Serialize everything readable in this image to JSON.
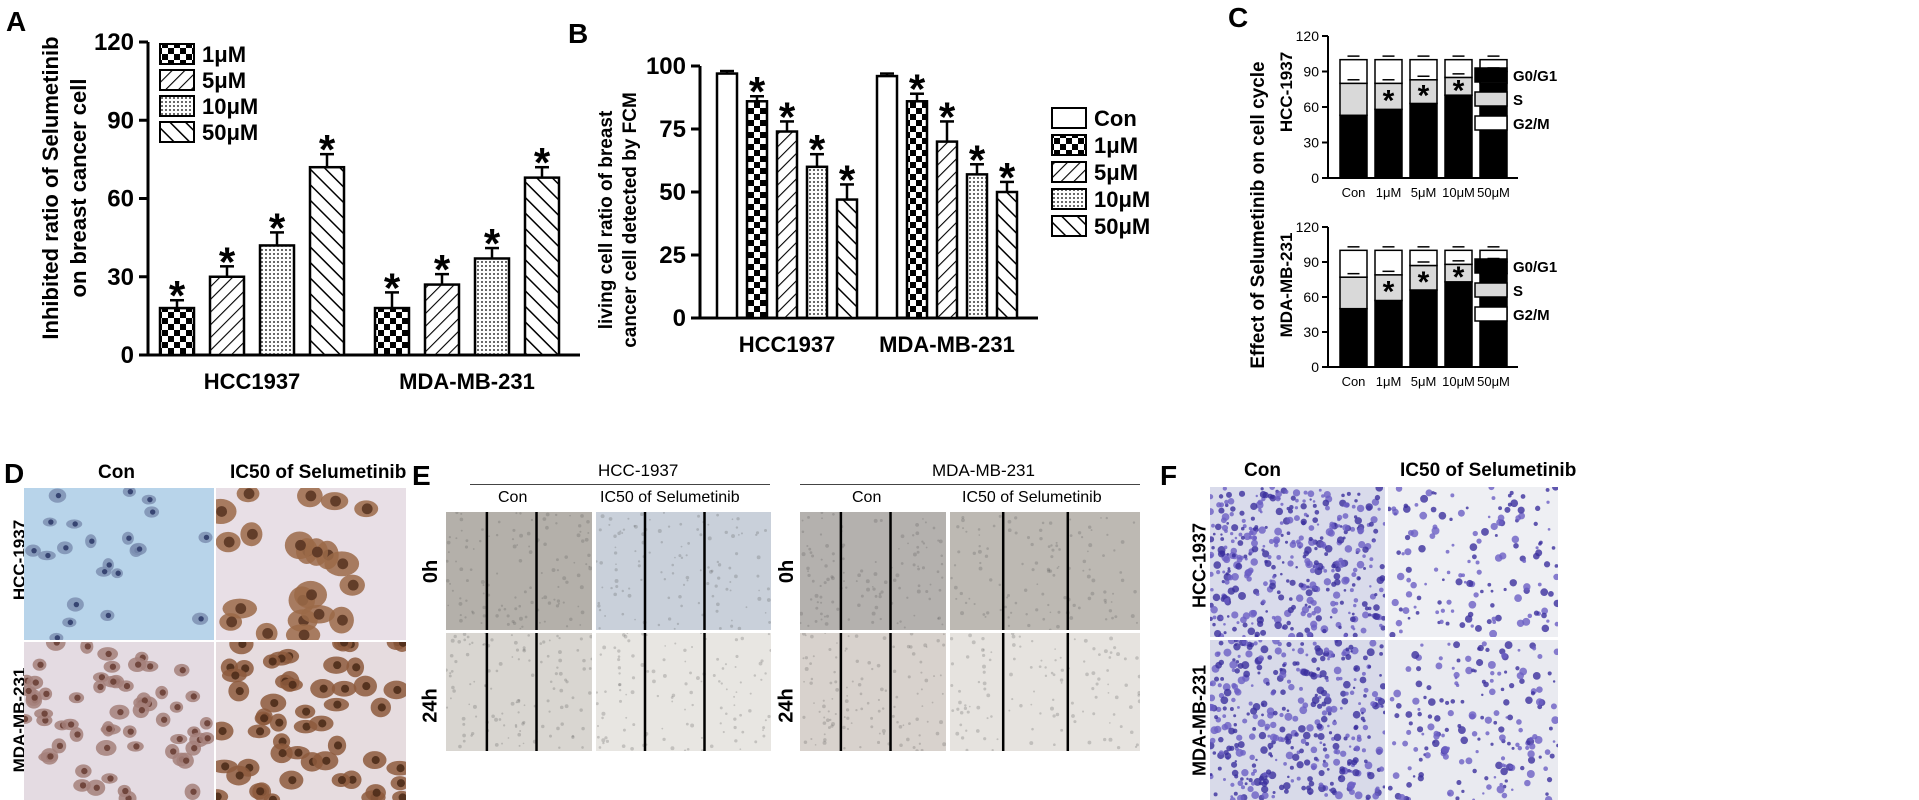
{
  "panels": {
    "A": {
      "letter": "A",
      "ylabel_line1": "Inhibited ratio of Selumetinib",
      "ylabel_line2": "on breast cancer cell",
      "yticks": [
        "0",
        "30",
        "60",
        "90",
        "120"
      ],
      "legend": [
        "1μM",
        "5μM",
        "10μM",
        "50μM"
      ],
      "groups": [
        "HCC1937",
        "MDA-MB-231"
      ]
    },
    "B": {
      "letter": "B",
      "ylabel_line1": "living cell ratio of breast",
      "ylabel_line2": "cancer cell detected by FCM",
      "yticks": [
        "0",
        "25",
        "50",
        "75",
        "100"
      ],
      "legend": [
        "Con",
        "1μM",
        "5μM",
        "10μM",
        "50μM"
      ],
      "groups": [
        "HCC1937",
        "MDA-MB-231"
      ]
    },
    "C": {
      "letter": "C",
      "ylabel_line1": "Effect  of Selumetinib on cell cycle",
      "top_cell_line": "HCC-1937",
      "bottom_cell_line": "MDA-MB-231",
      "yticks": [
        "0",
        "30",
        "60",
        "90",
        "120"
      ],
      "categories": [
        "Con",
        "1μM",
        "5μM",
        "10μM",
        "50μM"
      ],
      "legend": [
        "G0/G1",
        "S",
        "G2/M"
      ]
    },
    "D": {
      "letter": "D",
      "col_labels": [
        "Con",
        "IC50 of Selumetinib"
      ],
      "row_labels": [
        "HCC-1937",
        "MDA-MB-231"
      ]
    },
    "E": {
      "letter": "E",
      "group_labels": [
        "HCC-1937",
        "MDA-MB-231"
      ],
      "col_labels": [
        "Con",
        "IC50 of Selumetinib"
      ],
      "row_labels": [
        "0h",
        "24h"
      ]
    },
    "F": {
      "letter": "F",
      "col_labels": [
        "Con",
        "IC50 of Selumetinib"
      ],
      "row_labels": [
        "HCC-1937",
        "MDA-MB-231"
      ]
    }
  },
  "colors": {
    "black": "#000000",
    "stain_blue": "#4a3fb0",
    "stain_brown": "#8a5a3a",
    "wound_gray": "#b8b4ae"
  },
  "chart_data": [
    {
      "panel": "A",
      "type": "bar",
      "categories": [
        "HCC1937",
        "MDA-MB-231"
      ],
      "series": [
        {
          "name": "1μM",
          "values": [
            18,
            18
          ],
          "errors": [
            3,
            6
          ]
        },
        {
          "name": "5μM",
          "values": [
            30,
            27
          ],
          "errors": [
            4,
            4
          ]
        },
        {
          "name": "10μM",
          "values": [
            42,
            37
          ],
          "errors": [
            5,
            4
          ]
        },
        {
          "name": "50μM",
          "values": [
            72,
            68
          ],
          "errors": [
            5,
            4
          ]
        }
      ],
      "significance": [
        "*",
        "*",
        "*",
        "*",
        "*",
        "*",
        "*",
        "*"
      ],
      "ylim": [
        0,
        120
      ]
    },
    {
      "panel": "B",
      "type": "bar",
      "categories": [
        "HCC1937",
        "MDA-MB-231"
      ],
      "series": [
        {
          "name": "Con",
          "values": [
            97,
            96
          ],
          "errors": [
            1,
            1
          ]
        },
        {
          "name": "1μM",
          "values": [
            86,
            86
          ],
          "errors": [
            2,
            3
          ]
        },
        {
          "name": "5μM",
          "values": [
            74,
            70
          ],
          "errors": [
            4,
            8
          ]
        },
        {
          "name": "10μM",
          "values": [
            60,
            57
          ],
          "errors": [
            5,
            4
          ]
        },
        {
          "name": "50μM",
          "values": [
            47,
            50
          ],
          "errors": [
            6,
            4
          ]
        }
      ],
      "ylim": [
        0,
        100
      ]
    },
    {
      "panel": "C",
      "type": "bar",
      "stacked": true,
      "subplots": [
        {
          "title": "HCC-1937",
          "categories": [
            "Con",
            "1μM",
            "5μM",
            "10μM",
            "50μM"
          ],
          "series": [
            {
              "name": "G0/G1",
              "values": [
                53,
                58,
                63,
                70,
                80
              ]
            },
            {
              "name": "S",
              "values": [
                27,
                22,
                20,
                15,
                10
              ]
            },
            {
              "name": "G2/M",
              "values": [
                20,
                20,
                17,
                15,
                10
              ]
            }
          ],
          "ylim": [
            0,
            120
          ]
        },
        {
          "title": "MDA-MB-231",
          "categories": [
            "Con",
            "1μM",
            "5μM",
            "10μM",
            "50μM"
          ],
          "series": [
            {
              "name": "G0/G1",
              "values": [
                50,
                57,
                66,
                73,
                80
              ]
            },
            {
              "name": "S",
              "values": [
                27,
                22,
                21,
                15,
                10
              ]
            },
            {
              "name": "G2/M",
              "values": [
                23,
                21,
                13,
                12,
                10
              ]
            }
          ],
          "ylim": [
            0,
            120
          ]
        }
      ]
    }
  ]
}
